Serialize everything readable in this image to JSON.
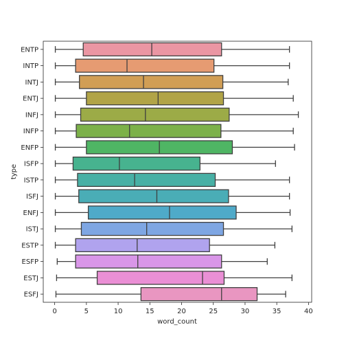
{
  "chart_data": {
    "type": "box",
    "orientation": "horizontal",
    "xlabel": "word_count",
    "ylabel": "type",
    "xlim": [
      -1.8,
      40.5
    ],
    "xticks": [
      0,
      5,
      10,
      15,
      20,
      25,
      30,
      35,
      40
    ],
    "grid": false,
    "legend": "none",
    "categories": [
      "ENTP",
      "INTP",
      "INTJ",
      "ENTJ",
      "INFJ",
      "INFP",
      "ENFP",
      "ISFP",
      "ISTP",
      "ISFJ",
      "ENFJ",
      "ISTJ",
      "ESTP",
      "ESFP",
      "ESTJ",
      "ESFJ"
    ],
    "boxes": [
      {
        "category": "ENTP",
        "whisker_low": 0.1,
        "q1": 4.5,
        "median": 15.3,
        "q3": 26.3,
        "whisker_high": 37.0,
        "color": "#ea96a3"
      },
      {
        "category": "INTP",
        "whisker_low": 0.1,
        "q1": 3.3,
        "median": 11.4,
        "q3": 25.1,
        "whisker_high": 37.0,
        "color": "#e69b72"
      },
      {
        "category": "INTJ",
        "whisker_low": 0.1,
        "q1": 3.9,
        "median": 14.0,
        "q3": 26.5,
        "whisker_high": 36.8,
        "color": "#d19e55"
      },
      {
        "category": "ENTJ",
        "whisker_low": 0.1,
        "q1": 5.0,
        "median": 16.3,
        "q3": 26.6,
        "whisker_high": 37.6,
        "color": "#b1a447"
      },
      {
        "category": "INFJ",
        "whisker_low": 0.1,
        "q1": 4.1,
        "median": 14.3,
        "q3": 27.5,
        "whisker_high": 38.4,
        "color": "#9cab47"
      },
      {
        "category": "INFP",
        "whisker_low": 0.1,
        "q1": 3.4,
        "median": 11.8,
        "q3": 26.2,
        "whisker_high": 37.6,
        "color": "#7cb149"
      },
      {
        "category": "ENFP",
        "whisker_low": 0.1,
        "q1": 5.0,
        "median": 16.5,
        "q3": 28.0,
        "whisker_high": 37.8,
        "color": "#4fb564"
      },
      {
        "category": "ISFP",
        "whisker_low": 0.1,
        "q1": 2.9,
        "median": 10.2,
        "q3": 22.9,
        "whisker_high": 34.8,
        "color": "#47b38f"
      },
      {
        "category": "ISTP",
        "whisker_low": 0.1,
        "q1": 3.6,
        "median": 12.6,
        "q3": 25.3,
        "whisker_high": 37.0,
        "color": "#48b0a5"
      },
      {
        "category": "ISFJ",
        "whisker_low": 0.1,
        "q1": 3.8,
        "median": 16.1,
        "q3": 27.4,
        "whisker_high": 37.0,
        "color": "#4aadb6"
      },
      {
        "category": "ENFJ",
        "whisker_low": 0.1,
        "q1": 5.3,
        "median": 18.1,
        "q3": 28.6,
        "whisker_high": 37.1,
        "color": "#4faac9"
      },
      {
        "category": "ISTJ",
        "whisker_low": 0.1,
        "q1": 4.2,
        "median": 14.5,
        "q3": 26.6,
        "whisker_high": 37.4,
        "color": "#7ea6e3"
      },
      {
        "category": "ESTP",
        "whisker_low": 0.1,
        "q1": 3.3,
        "median": 13.0,
        "q3": 24.4,
        "whisker_high": 34.7,
        "color": "#b0a3ee"
      },
      {
        "category": "ESFP",
        "whisker_low": 0.4,
        "q1": 3.3,
        "median": 13.1,
        "q3": 26.3,
        "whisker_high": 33.5,
        "color": "#d996e8"
      },
      {
        "category": "ESTJ",
        "whisker_low": 0.3,
        "q1": 6.7,
        "median": 23.3,
        "q3": 26.7,
        "whisker_high": 37.4,
        "color": "#ea8fd5"
      },
      {
        "category": "ESFJ",
        "whisker_low": 0.2,
        "q1": 13.6,
        "median": 26.3,
        "q3": 31.9,
        "whisker_high": 36.4,
        "color": "#e996c1"
      }
    ]
  }
}
